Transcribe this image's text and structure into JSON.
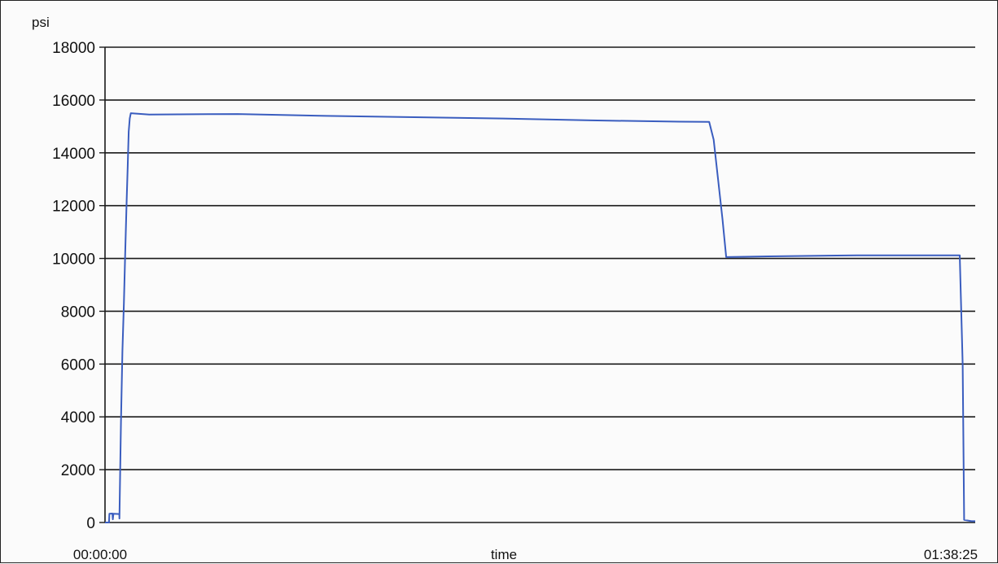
{
  "chart_data": {
    "type": "line",
    "title": "",
    "ylabel": "psi",
    "xlabel": "time",
    "ylim": [
      0,
      18000
    ],
    "yticks": [
      0,
      2000,
      4000,
      6000,
      8000,
      10000,
      12000,
      14000,
      16000,
      18000
    ],
    "x_tick_labels": [
      "00:00:00",
      "01:38:25"
    ],
    "xlim_seconds": [
      0,
      5905
    ],
    "grid": true,
    "legend": "none",
    "line_color": "#3a5dbf",
    "series": [
      {
        "name": "",
        "points": [
          {
            "t": "00:00:00",
            "y": 0
          },
          {
            "t": "00:00:27",
            "y": 0
          },
          {
            "t": "00:00:30",
            "y": 330
          },
          {
            "t": "00:00:50",
            "y": 340
          },
          {
            "t": "00:00:53",
            "y": 120
          },
          {
            "t": "00:00:57",
            "y": 330
          },
          {
            "t": "00:01:37",
            "y": 320
          },
          {
            "t": "00:01:38",
            "y": 150
          },
          {
            "t": "00:01:48",
            "y": 3800
          },
          {
            "t": "00:01:58",
            "y": 6500
          },
          {
            "t": "00:02:08",
            "y": 8300
          },
          {
            "t": "00:02:17",
            "y": 10200
          },
          {
            "t": "00:02:27",
            "y": 12200
          },
          {
            "t": "00:02:34",
            "y": 13500
          },
          {
            "t": "00:02:41",
            "y": 14800
          },
          {
            "t": "00:02:48",
            "y": 15300
          },
          {
            "t": "00:02:55",
            "y": 15500
          },
          {
            "t": "00:05:00",
            "y": 15450
          },
          {
            "t": "00:15:00",
            "y": 15470
          },
          {
            "t": "00:25:00",
            "y": 15400
          },
          {
            "t": "00:35:00",
            "y": 15350
          },
          {
            "t": "00:45:00",
            "y": 15300
          },
          {
            "t": "00:55:00",
            "y": 15230
          },
          {
            "t": "01:05:00",
            "y": 15180
          },
          {
            "t": "01:08:20",
            "y": 15170
          },
          {
            "t": "01:08:50",
            "y": 14500
          },
          {
            "t": "01:09:20",
            "y": 13000
          },
          {
            "t": "01:09:50",
            "y": 11500
          },
          {
            "t": "01:10:15",
            "y": 10050
          },
          {
            "t": "01:15:00",
            "y": 10080
          },
          {
            "t": "01:25:00",
            "y": 10120
          },
          {
            "t": "01:36:40",
            "y": 10120
          },
          {
            "t": "01:37:00",
            "y": 6000
          },
          {
            "t": "01:37:10",
            "y": 100
          },
          {
            "t": "01:38:00",
            "y": 50
          },
          {
            "t": "01:38:25",
            "y": 50
          }
        ]
      }
    ]
  }
}
